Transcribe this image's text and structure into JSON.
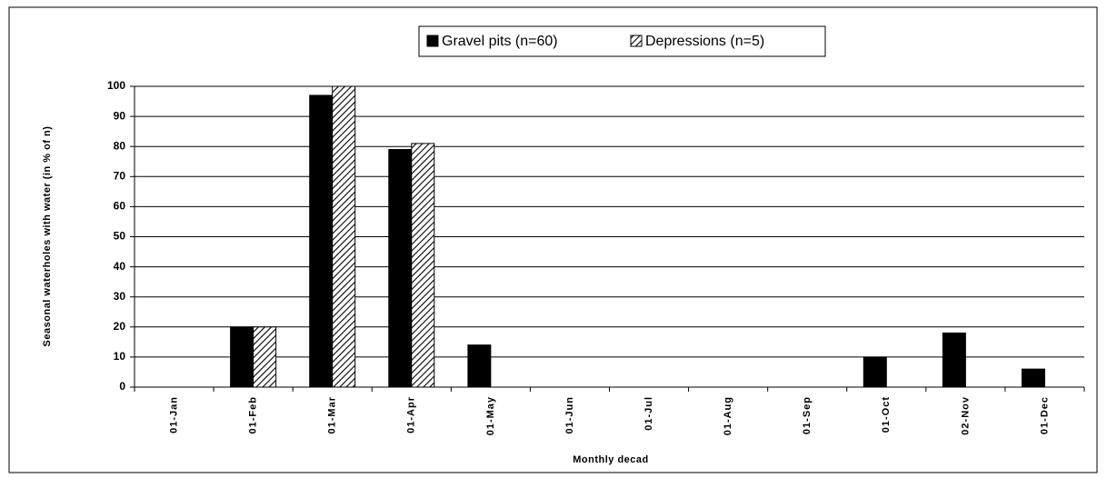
{
  "chart_data": {
    "type": "bar",
    "categories": [
      "01-Jan",
      "01-Feb",
      "01-Mar",
      "01-Apr",
      "01-May",
      "01-Jun",
      "01-Jul",
      "01-Aug",
      "01-Sep",
      "01-Oct",
      "02-Nov",
      "01-Dec"
    ],
    "series": [
      {
        "name": "Gravel pits (n=60)",
        "color": "#000000",
        "values": [
          0,
          20,
          97,
          79,
          14,
          0,
          0,
          0,
          0,
          10,
          18,
          6
        ]
      },
      {
        "name": "Depressions (n=5)",
        "color": "#000000",
        "pattern": "diagonal-hatch",
        "values": [
          0,
          20,
          100,
          81,
          0,
          0,
          0,
          0,
          0,
          0,
          0,
          0
        ]
      }
    ],
    "xlabel": "Monthly decad",
    "ylabel": "Seasonal waterholes with water (in % of n)",
    "ylim": [
      0,
      100
    ],
    "yticks": [
      0,
      10,
      20,
      30,
      40,
      50,
      60,
      70,
      80,
      90,
      100
    ],
    "grid": true,
    "legend": "top"
  }
}
